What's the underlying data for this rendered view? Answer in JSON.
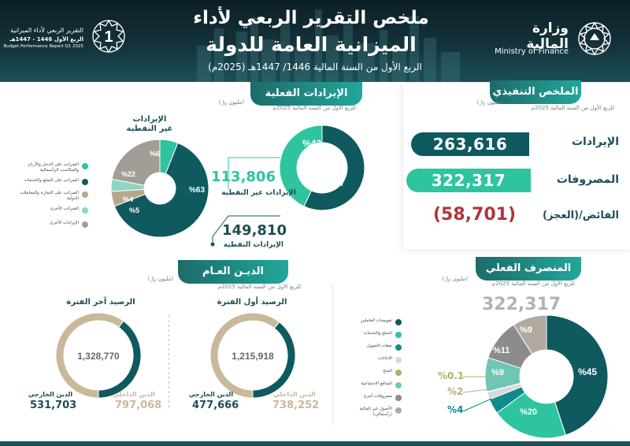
{
  "header": {
    "title_line1": "ملخص التقرير الربعي لأداء",
    "title_line2": "الميزانية العامة للدولة",
    "subtitle": "الربع الأول من السنة المالية 1446/ 1447هـ (2025م)",
    "ministry_ar": "وزارة المالية",
    "ministry_en": "Ministry of Finance",
    "badge_line1": "التقرير الربعي لأداء الميزانية",
    "badge_line2": "الربع الأول 1446 - 1447هـ",
    "badge_line3": "Budget Performance Report Q1 2025",
    "badge_number": "1"
  },
  "executive": {
    "tab": "الملخص التنفيذي",
    "sub": "للربع الأول من السنة المالية 2025م",
    "unit": "(مليون ﷼)",
    "revenues_label": "الإيرادات",
    "revenues_value": "263,616",
    "expenses_label": "المصروفات",
    "expenses_value": "322,317",
    "deficit_label": "الفائض/(العجز)",
    "deficit_value": "(58,701)"
  },
  "revenues": {
    "tab": "الإيرادات الفعلية",
    "sub": "للربع الأول من السنة المالية 2025م",
    "unit": "(مليون ﷼)",
    "oil_value": "149,810",
    "oil_label": "الإيرادات النفطية",
    "nonoil_value": "113,806",
    "nonoil_label": "الإيرادات غير النفطية",
    "nonoil_title_1": "الإيرادات",
    "nonoil_title_2": "غير النفطية",
    "split_pct": [
      "%57",
      "%43"
    ],
    "nonoil_pct": [
      "%63",
      "%22",
      "%6",
      "%4",
      "%5"
    ],
    "legend": [
      "الضرائب على الدخل والأرباح والمكاسب الرأسمالية",
      "الضرائب على السلع والخدمات",
      "الضرائب على التجارة والمعاملات الدولية",
      "الضرائب الأخرى",
      "الإيرادات الأخرى"
    ],
    "colors": {
      "income": "#2ec49f",
      "goods": "#0e5a5e",
      "trade": "#b8a88a",
      "other_tax": "#8fd4c4",
      "other_rev": "#a39d97",
      "split_dark": "#0e5a5e",
      "split_light": "#2ec49f"
    }
  },
  "debt": {
    "tab": "الديـن العـام",
    "sub": "للربع الأول من السنة المالية 2025م",
    "unit": "(مليون ﷼)",
    "begin_title": "الرصيد أول الفترة",
    "begin_total": "1,215,918",
    "begin_domestic_label": "الدين الداخلي",
    "begin_domestic_value": "738,252",
    "begin_external_label": "الدين الخارجي",
    "begin_external_value": "477,666",
    "end_title": "الرصيد آخر الفترة",
    "end_total": "1,328,770",
    "end_domestic_label": "الدين الداخلي",
    "end_domestic_value": "797,068",
    "end_external_label": "الدين الخارجي",
    "end_external_value": "531,703",
    "colors": {
      "domestic": "#c9b89a",
      "external": "#0e5a5e"
    }
  },
  "expenditure": {
    "tab": "المنصرف الفعلي",
    "sub": "للربع الأول من السنة المالية 2025م",
    "unit": "(مليون ﷼)",
    "total": "322,317",
    "legend": [
      "تعويضات العاملين",
      "السلع والخدمات",
      "نفقات التمويل",
      "الإعانات",
      "المنح",
      "المنافع الاجتماعية",
      "مصروفات أخرى",
      "الأصول غير المالية (رأسمالي)"
    ],
    "legend_colors": [
      "#0e5a5e",
      "#2ec49f",
      "#128a8a",
      "#d8d8d8",
      "#a6b76a",
      "#6fc6b4",
      "#8c8c8c",
      "#b0a99f"
    ],
    "pct_labels": [
      "%45",
      "%20",
      "%4",
      "%2",
      "%0.1",
      "%9",
      "%11",
      "%9"
    ],
    "outside_pct": [
      "%0.1",
      "%2",
      "%4"
    ]
  },
  "chart_data": [
    {
      "type": "pie",
      "title": "الإيرادات الفعلية",
      "categories": [
        "الإيرادات النفطية",
        "الإيرادات غير النفطية"
      ],
      "values": [
        57,
        43
      ]
    },
    {
      "type": "pie",
      "title": "الإيرادات غير النفطية",
      "categories": [
        "الضرائب على الدخل والأرباح والمكاسب الرأسمالية",
        "الضرائب على السلع والخدمات",
        "الضرائب على التجارة والمعاملات الدولية",
        "الضرائب الأخرى",
        "الإيرادات الأخرى"
      ],
      "values": [
        6,
        63,
        5,
        4,
        22
      ]
    },
    {
      "type": "pie",
      "title": "الرصيد أول الفترة",
      "categories": [
        "الدين الداخلي",
        "الدين الخارجي"
      ],
      "values": [
        738252,
        477666
      ]
    },
    {
      "type": "pie",
      "title": "الرصيد آخر الفترة",
      "categories": [
        "الدين الداخلي",
        "الدين الخارجي"
      ],
      "values": [
        797068,
        531703
      ]
    },
    {
      "type": "pie",
      "title": "المنصرف الفعلي",
      "categories": [
        "تعويضات العاملين",
        "السلع والخدمات",
        "نفقات التمويل",
        "الإعانات",
        "المنح",
        "المنافع الاجتماعية",
        "مصروفات أخرى",
        "الأصول غير المالية (رأسمالي)"
      ],
      "values": [
        45,
        20,
        4,
        2,
        0.1,
        9,
        11,
        9
      ]
    }
  ]
}
